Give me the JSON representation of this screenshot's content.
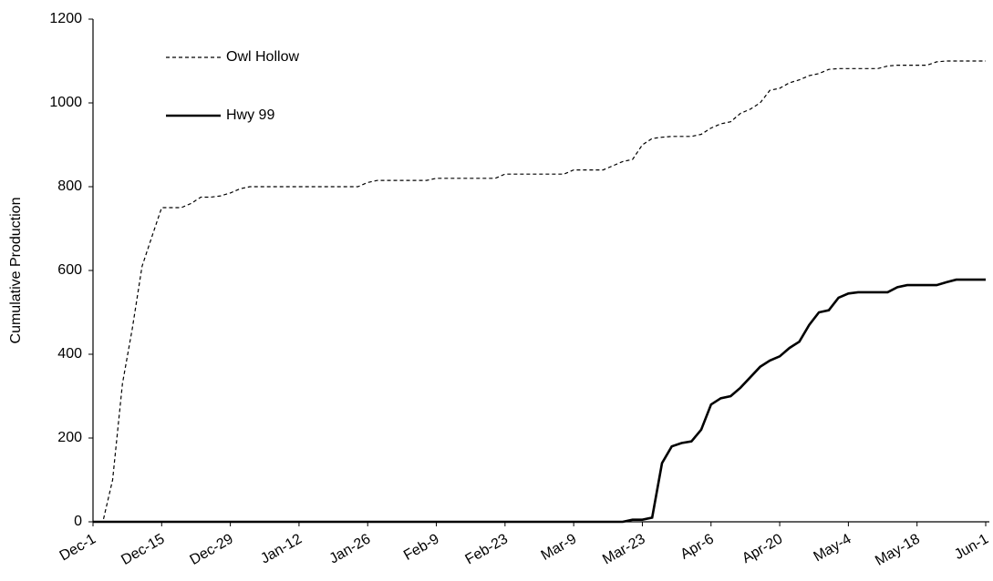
{
  "chart_data": {
    "type": "line",
    "y_label": "Cumulative Production",
    "categories": [
      "Dec-1",
      null,
      null,
      null,
      null,
      null,
      null,
      "Dec-15",
      null,
      null,
      null,
      null,
      null,
      null,
      "Dec-29",
      null,
      null,
      null,
      null,
      null,
      null,
      "Jan-12",
      null,
      null,
      null,
      null,
      null,
      null,
      "Jan-26",
      null,
      null,
      null,
      null,
      null,
      null,
      "Feb-9",
      null,
      null,
      null,
      null,
      null,
      null,
      "Feb-23",
      null,
      null,
      null,
      null,
      null,
      null,
      "Mar-9",
      null,
      null,
      null,
      null,
      null,
      null,
      "Mar-23",
      null,
      null,
      null,
      null,
      null,
      null,
      "Apr-6",
      null,
      null,
      null,
      null,
      null,
      null,
      "Apr-20",
      null,
      null,
      null,
      null,
      null,
      null,
      "May-4",
      null,
      null,
      null,
      null,
      null,
      null,
      "May-18",
      null,
      null,
      null,
      null,
      null,
      null,
      "Jun-1"
    ],
    "series": [
      {
        "name": "Owl Hollow",
        "color": "#000000",
        "style": "dashed",
        "values": [
          0,
          0,
          100,
          330,
          460,
          610,
          680,
          750,
          750,
          750,
          760,
          775,
          775,
          778,
          785,
          795,
          800,
          800,
          800,
          800,
          800,
          800,
          800,
          800,
          800,
          800,
          800,
          800,
          810,
          815,
          815,
          815,
          815,
          815,
          815,
          820,
          820,
          820,
          820,
          820,
          820,
          820,
          830,
          830,
          830,
          830,
          830,
          830,
          830,
          840,
          840,
          840,
          840,
          850,
          860,
          865,
          900,
          915,
          918,
          920,
          920,
          920,
          925,
          940,
          950,
          955,
          975,
          985,
          1000,
          1030,
          1035,
          1048,
          1055,
          1065,
          1070,
          1080,
          1082,
          1082,
          1082,
          1082,
          1082,
          1088,
          1090,
          1090,
          1090,
          1090,
          1098,
          1100,
          1100,
          1100,
          1100,
          1100
        ]
      },
      {
        "name": "Hwy 99",
        "color": "#000000",
        "style": "solid",
        "values": [
          0,
          0,
          0,
          0,
          0,
          0,
          0,
          0,
          0,
          0,
          0,
          0,
          0,
          0,
          0,
          0,
          0,
          0,
          0,
          0,
          0,
          0,
          0,
          0,
          0,
          0,
          0,
          0,
          0,
          0,
          0,
          0,
          0,
          0,
          0,
          0,
          0,
          0,
          0,
          0,
          0,
          0,
          0,
          0,
          0,
          0,
          0,
          0,
          0,
          0,
          0,
          0,
          0,
          0,
          0,
          5,
          5,
          10,
          140,
          180,
          188,
          192,
          220,
          280,
          295,
          300,
          320,
          345,
          370,
          385,
          395,
          415,
          430,
          470,
          500,
          505,
          535,
          545,
          548,
          548,
          548,
          548,
          560,
          565,
          565,
          565,
          565,
          572,
          578,
          578,
          578,
          578
        ]
      }
    ],
    "ylim": [
      0,
      1200
    ],
    "yticks": [
      0,
      200,
      400,
      600,
      800,
      1000,
      1200
    ],
    "grid": false,
    "legend": "upper left"
  }
}
